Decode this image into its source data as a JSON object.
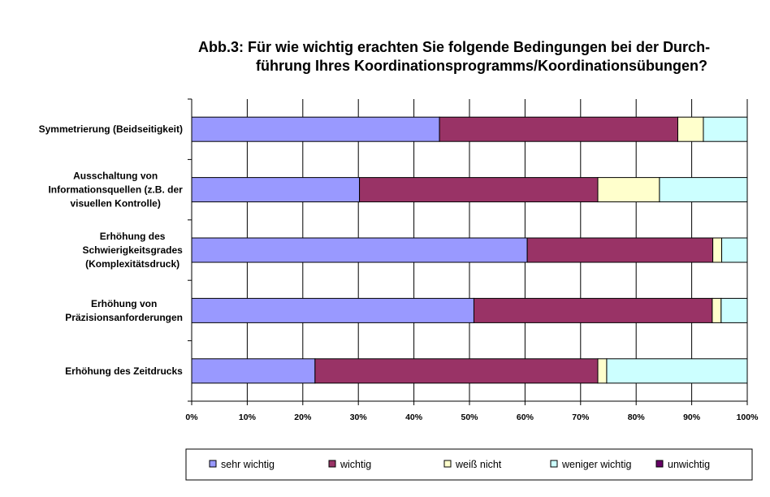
{
  "chart_data": {
    "type": "bar",
    "orientation": "horizontal",
    "stacked": true,
    "percent_stacked": true,
    "title_lines": [
      "Abb.3: Für wie wichtig erachten Sie folgende Bedingungen bei der Durch-",
      "führung Ihres Koordinationsprogramms/Koordinationsübungen?"
    ],
    "categories": [
      [
        "Symmetrierung (Beidseitigkeit)"
      ],
      [
        "Ausschaltung von",
        "Informationsquellen (z.B. der",
        "visuellen Kontrolle)"
      ],
      [
        "Erhöhung des",
        "Schwierigkeitsgrades",
        "(Komplexitätsdruck)"
      ],
      [
        "Erhöhung von",
        "Präzisionsanforderungen"
      ],
      [
        "Erhöhung des Zeitdrucks"
      ]
    ],
    "xlim": [
      0,
      100
    ],
    "xticks": [
      "0%",
      "10%",
      "20%",
      "30%",
      "40%",
      "50%",
      "60%",
      "70%",
      "80%",
      "90%",
      "100%"
    ],
    "grid": true,
    "legend_position": "bottom",
    "series": [
      {
        "name": "sehr wichtig",
        "color": "#9999FF",
        "values": [
          44.6,
          30.2,
          60.4,
          50.8,
          22.2
        ]
      },
      {
        "name": "wichtig",
        "color": "#993366",
        "values": [
          42.9,
          42.9,
          33.4,
          42.9,
          50.9
        ]
      },
      {
        "name": "weiß nicht",
        "color": "#FFFFCC",
        "values": [
          4.6,
          11.1,
          1.6,
          1.6,
          1.6
        ]
      },
      {
        "name": "weniger wichtig",
        "color": "#CCFFFF",
        "values": [
          7.9,
          15.8,
          4.6,
          4.7,
          25.3
        ]
      },
      {
        "name": "unwichtig",
        "color": "#660066",
        "values": [
          0,
          0,
          0,
          0,
          0
        ]
      }
    ]
  }
}
